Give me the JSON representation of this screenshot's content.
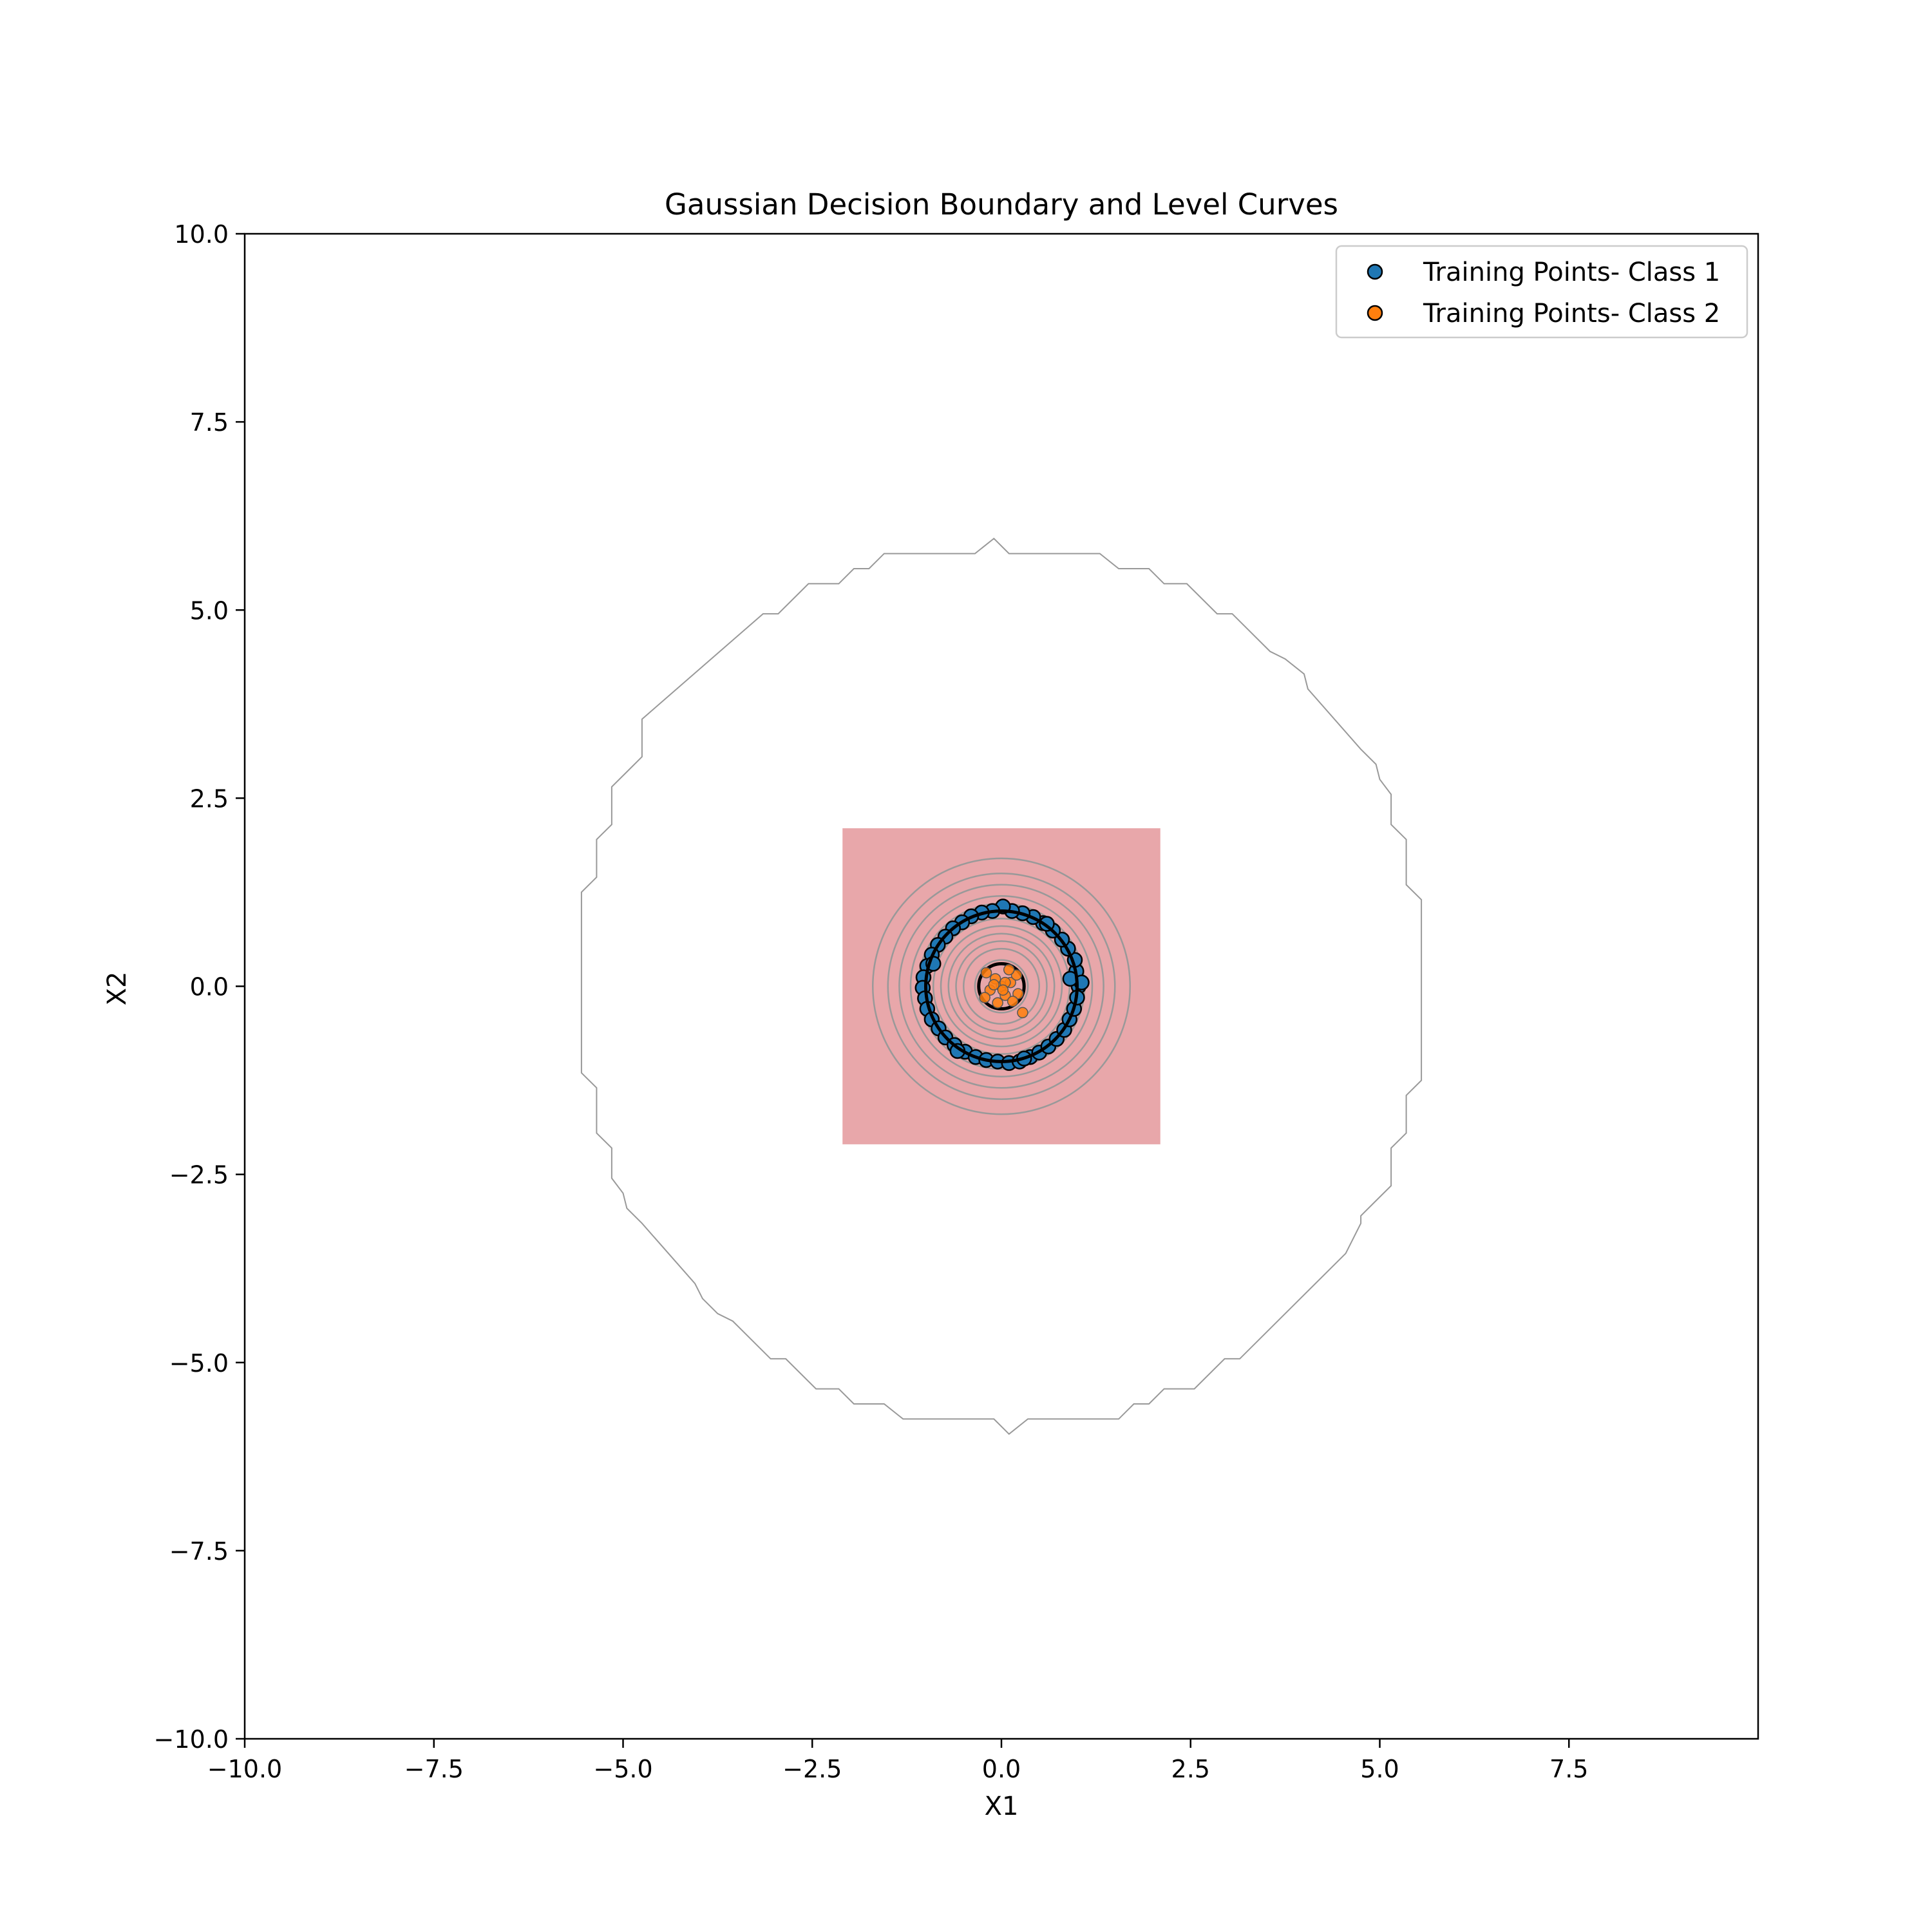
{
  "chart_data": {
    "type": "scatter",
    "title": "Gaussian Decision Boundary and Level Curves",
    "xlabel": "X1",
    "ylabel": "X2",
    "xlim": [
      -10,
      10
    ],
    "ylim": [
      -10,
      10
    ],
    "x_ticks": [
      -10.0,
      -7.5,
      -5.0,
      -2.5,
      0.0,
      2.5,
      5.0,
      7.5
    ],
    "x_tick_labels": [
      "−10.0",
      "−7.5",
      "−5.0",
      "−2.5",
      "0.0",
      "2.5",
      "5.0",
      "7.5"
    ],
    "y_ticks": [
      -10.0,
      -7.5,
      -5.0,
      -2.5,
      0.0,
      2.5,
      5.0,
      7.5,
      10.0
    ],
    "y_tick_labels": [
      "−10.0",
      "−7.5",
      "−5.0",
      "−2.5",
      "0.0",
      "2.5",
      "5.0",
      "7.5",
      "10.0"
    ],
    "grid": false,
    "legend": {
      "placement": "top-right"
    },
    "region": {
      "x_range": [
        -2.1,
        2.1
      ],
      "y_range": [
        -2.1,
        2.1
      ],
      "color": "#e8a7aa"
    },
    "level_curve_radii": [
      0.35,
      0.5,
      0.6,
      0.7,
      0.8,
      0.9,
      1.0,
      1.1,
      1.2,
      1.35,
      1.5,
      1.7
    ],
    "level_curve_color": "#999999",
    "outer_contour": {
      "color": "#999999",
      "points": [
        [
          -0.1,
          5.95
        ],
        [
          0.1,
          5.75
        ],
        [
          1.3,
          5.75
        ],
        [
          1.55,
          5.55
        ],
        [
          1.95,
          5.55
        ],
        [
          2.15,
          5.35
        ],
        [
          2.45,
          5.35
        ],
        [
          2.85,
          4.95
        ],
        [
          3.05,
          4.95
        ],
        [
          3.55,
          4.45
        ],
        [
          3.75,
          4.35
        ],
        [
          4.0,
          4.15
        ],
        [
          4.05,
          3.95
        ],
        [
          4.75,
          3.15
        ],
        [
          4.95,
          2.95
        ],
        [
          5.0,
          2.75
        ],
        [
          5.15,
          2.55
        ],
        [
          5.15,
          2.15
        ],
        [
          5.35,
          1.95
        ],
        [
          5.35,
          1.35
        ],
        [
          5.55,
          1.15
        ],
        [
          5.55,
          -1.25
        ],
        [
          5.35,
          -1.45
        ],
        [
          5.35,
          -1.95
        ],
        [
          5.15,
          -2.15
        ],
        [
          5.15,
          -2.65
        ],
        [
          4.95,
          -2.85
        ],
        [
          4.75,
          -3.05
        ],
        [
          4.75,
          -3.15
        ],
        [
          4.55,
          -3.55
        ],
        [
          3.15,
          -4.95
        ],
        [
          2.95,
          -4.95
        ],
        [
          2.55,
          -5.35
        ],
        [
          2.15,
          -5.35
        ],
        [
          1.95,
          -5.55
        ],
        [
          1.75,
          -5.55
        ],
        [
          1.55,
          -5.75
        ],
        [
          0.35,
          -5.75
        ],
        [
          0.1,
          -5.95
        ],
        [
          -0.1,
          -5.75
        ],
        [
          -1.3,
          -5.75
        ],
        [
          -1.55,
          -5.55
        ],
        [
          -1.95,
          -5.55
        ],
        [
          -2.15,
          -5.35
        ],
        [
          -2.45,
          -5.35
        ],
        [
          -2.85,
          -4.95
        ],
        [
          -3.05,
          -4.95
        ],
        [
          -3.55,
          -4.45
        ],
        [
          -3.75,
          -4.35
        ],
        [
          -3.95,
          -4.15
        ],
        [
          -4.05,
          -3.95
        ],
        [
          -4.75,
          -3.15
        ],
        [
          -4.95,
          -2.95
        ],
        [
          -5.0,
          -2.75
        ],
        [
          -5.15,
          -2.55
        ],
        [
          -5.15,
          -2.15
        ],
        [
          -5.35,
          -1.95
        ],
        [
          -5.35,
          -1.35
        ],
        [
          -5.55,
          -1.15
        ],
        [
          -5.55,
          1.25
        ],
        [
          -5.35,
          1.45
        ],
        [
          -5.35,
          1.95
        ],
        [
          -5.15,
          2.15
        ],
        [
          -5.15,
          2.65
        ],
        [
          -4.95,
          2.85
        ],
        [
          -4.75,
          3.05
        ],
        [
          -4.75,
          3.55
        ],
        [
          -3.15,
          4.95
        ],
        [
          -2.95,
          4.95
        ],
        [
          -2.55,
          5.35
        ],
        [
          -2.15,
          5.35
        ],
        [
          -1.95,
          5.55
        ],
        [
          -1.75,
          5.55
        ],
        [
          -1.55,
          5.75
        ],
        [
          -0.35,
          5.75
        ],
        [
          -0.1,
          5.95
        ]
      ]
    },
    "boundaries": [
      {
        "radius": 1.0,
        "color": "#000000"
      },
      {
        "radius": 0.3,
        "color": "#000000"
      }
    ],
    "series": [
      {
        "name": "Training Points- Class 1",
        "color": "#1f77b4",
        "points": [
          [
            1.02,
            0.0
          ],
          [
            0.99,
            0.2
          ],
          [
            0.97,
            0.35
          ],
          [
            0.88,
            0.5
          ],
          [
            0.8,
            0.62
          ],
          [
            0.68,
            0.74
          ],
          [
            0.55,
            0.84
          ],
          [
            0.42,
            0.92
          ],
          [
            0.28,
            0.97
          ],
          [
            0.14,
            1.0
          ],
          [
            0.02,
            1.06
          ],
          [
            -0.12,
            1.0
          ],
          [
            -0.26,
            0.98
          ],
          [
            -0.4,
            0.93
          ],
          [
            -0.52,
            0.85
          ],
          [
            -0.64,
            0.77
          ],
          [
            -0.74,
            0.66
          ],
          [
            -0.84,
            0.55
          ],
          [
            -0.92,
            0.42
          ],
          [
            -0.98,
            0.27
          ],
          [
            -1.03,
            0.12
          ],
          [
            -1.04,
            -0.02
          ],
          [
            -1.01,
            -0.16
          ],
          [
            -0.98,
            -0.3
          ],
          [
            -0.92,
            -0.44
          ],
          [
            -0.83,
            -0.56
          ],
          [
            -0.74,
            -0.68
          ],
          [
            -0.62,
            -0.78
          ],
          [
            -0.48,
            -0.87
          ],
          [
            -0.34,
            -0.94
          ],
          [
            -0.2,
            -0.98
          ],
          [
            -0.05,
            -1.0
          ],
          [
            0.1,
            -1.02
          ],
          [
            0.24,
            -1.0
          ],
          [
            0.38,
            -0.94
          ],
          [
            0.5,
            -0.88
          ],
          [
            0.62,
            -0.8
          ],
          [
            0.73,
            -0.7
          ],
          [
            0.83,
            -0.58
          ],
          [
            0.9,
            -0.44
          ],
          [
            0.96,
            -0.3
          ],
          [
            1.0,
            -0.15
          ],
          [
            1.06,
            0.05
          ],
          [
            0.91,
            0.1
          ],
          [
            -0.9,
            0.3
          ],
          [
            0.6,
            0.83
          ],
          [
            -0.58,
            -0.86
          ],
          [
            0.3,
            -0.96
          ]
        ]
      },
      {
        "name": "Training Points- Class 2",
        "color": "#ff7f0e",
        "points": [
          [
            0.0,
            0.0
          ],
          [
            0.12,
            0.05
          ],
          [
            -0.08,
            0.1
          ],
          [
            0.05,
            -0.12
          ],
          [
            -0.15,
            -0.05
          ],
          [
            0.2,
            0.15
          ],
          [
            -0.2,
            0.18
          ],
          [
            0.1,
            0.22
          ],
          [
            -0.05,
            -0.22
          ],
          [
            0.22,
            -0.1
          ],
          [
            -0.22,
            -0.15
          ],
          [
            0.05,
            0.05
          ],
          [
            0.28,
            -0.35
          ],
          [
            0.15,
            -0.2
          ],
          [
            -0.1,
            0.02
          ],
          [
            0.02,
            -0.05
          ]
        ]
      }
    ]
  }
}
